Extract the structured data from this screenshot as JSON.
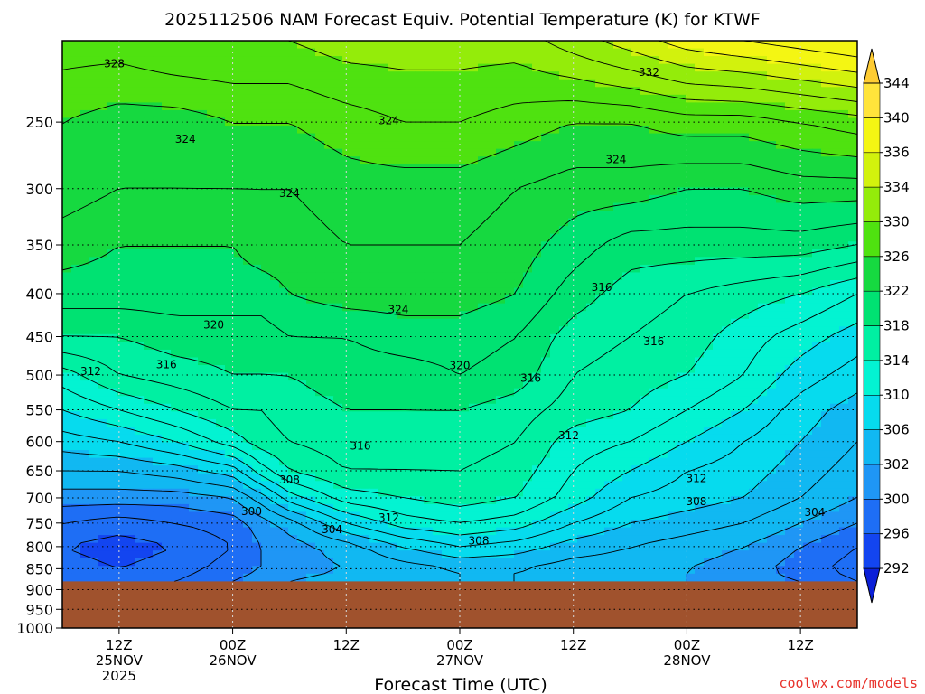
{
  "chart_data": {
    "type": "heatmap",
    "title": "2025112506 NAM Forecast Equiv. Potential Temperature (K) for KTWF",
    "xlabel": "Forecast Time (UTC)",
    "ylabel": "",
    "y_axis": {
      "log_scale": true,
      "reversed": true,
      "range": [
        200,
        1000
      ],
      "ticks": [
        250,
        300,
        350,
        400,
        450,
        500,
        550,
        600,
        650,
        700,
        750,
        800,
        850,
        900,
        950,
        1000
      ]
    },
    "x_axis": {
      "range_hours": [
        0,
        84
      ],
      "ticks": [
        {
          "hour": 6,
          "label": "12Z",
          "date": "25NOV",
          "year": "2025"
        },
        {
          "hour": 18,
          "label": "00Z",
          "date": "26NOV",
          "year": ""
        },
        {
          "hour": 30,
          "label": "12Z",
          "date": "",
          "year": ""
        },
        {
          "hour": 42,
          "label": "00Z",
          "date": "27NOV",
          "year": ""
        },
        {
          "hour": 54,
          "label": "12Z",
          "date": "",
          "year": ""
        },
        {
          "hour": 66,
          "label": "00Z",
          "date": "28NOV",
          "year": ""
        },
        {
          "hour": 78,
          "label": "12Z",
          "date": "",
          "year": ""
        }
      ]
    },
    "grid": true,
    "surface_pressure_hpa": 880,
    "surface_color": "#a0522d",
    "colorbar": {
      "levels": [
        292,
        296,
        300,
        302,
        306,
        310,
        314,
        318,
        322,
        326,
        330,
        334,
        336,
        340,
        344
      ],
      "colors": [
        "#0b1fd8",
        "#1345f0",
        "#1e6ef5",
        "#1f96f5",
        "#11b8f2",
        "#06dbee",
        "#03f3d2",
        "#00f0a2",
        "#00e272",
        "#16d940",
        "#4fe210",
        "#94ec0a",
        "#d2f20d",
        "#f4f613",
        "#ffe43b",
        "#ffcc33"
      ]
    },
    "time_hours": [
      0,
      6,
      12,
      18,
      21,
      24,
      30,
      36,
      42,
      48,
      54,
      60,
      66,
      72,
      78,
      84
    ],
    "field": [
      {
        "p": 200,
        "theta": [
          329,
          329,
          330,
          330,
          330,
          330,
          331,
          331,
          331,
          331,
          333,
          335,
          337,
          338,
          339,
          340
        ]
      },
      {
        "p": 250,
        "theta": [
          326,
          325,
          325,
          326,
          326,
          326,
          327,
          328,
          328,
          327,
          326,
          326,
          327,
          327,
          328,
          329
        ]
      },
      {
        "p": 300,
        "theta": [
          325,
          324,
          324,
          324,
          324,
          324,
          325,
          325,
          325,
          324,
          323,
          323,
          322,
          322,
          323,
          323
        ]
      },
      {
        "p": 350,
        "theta": [
          323,
          322,
          322,
          322,
          323,
          323,
          324,
          324,
          324,
          323,
          321,
          319,
          319,
          319,
          319,
          318
        ]
      },
      {
        "p": 400,
        "theta": [
          321,
          321,
          321,
          321,
          321,
          322,
          323,
          323,
          323,
          322,
          319,
          317,
          316,
          315,
          314,
          312
        ]
      },
      {
        "p": 450,
        "theta": [
          318,
          318,
          319,
          319,
          319,
          320,
          320,
          321,
          321,
          320,
          317,
          316,
          315,
          313,
          311,
          309
        ]
      },
      {
        "p": 500,
        "theta": [
          313,
          316,
          317,
          318,
          318,
          318,
          319,
          319,
          320,
          319,
          316,
          315,
          314,
          312,
          309,
          307
        ]
      },
      {
        "p": 550,
        "theta": [
          310,
          312,
          314,
          316,
          316,
          317,
          318,
          318,
          318,
          317,
          315,
          314,
          312,
          310,
          307,
          305
        ]
      },
      {
        "p": 600,
        "theta": [
          307,
          308,
          310,
          313,
          315,
          316,
          317,
          317,
          317,
          316,
          313,
          312,
          310,
          308,
          306,
          304
        ]
      },
      {
        "p": 650,
        "theta": [
          304,
          304,
          305,
          307,
          311,
          314,
          316,
          316,
          316,
          315,
          312,
          310,
          308,
          307,
          305,
          303
        ]
      },
      {
        "p": 700,
        "theta": [
          301,
          301,
          301,
          302,
          305,
          309,
          313,
          314,
          315,
          314,
          311,
          308,
          307,
          306,
          304,
          302
        ]
      },
      {
        "p": 750,
        "theta": [
          298,
          297,
          298,
          299,
          301,
          303,
          308,
          311,
          312,
          311,
          308,
          306,
          305,
          304,
          302,
          300
        ]
      },
      {
        "p": 800,
        "theta": [
          296,
          295,
          296,
          298,
          300,
          301,
          303,
          306,
          308,
          307,
          305,
          304,
          303,
          302,
          300,
          298
        ]
      },
      {
        "p": 850,
        "theta": [
          297,
          296,
          297,
          299,
          300,
          301,
          302,
          303,
          304,
          304,
          303,
          303,
          302,
          301,
          299,
          297
        ]
      },
      {
        "p": 880,
        "theta": [
          298,
          297,
          298,
          300,
          301,
          302,
          303,
          303,
          304,
          304,
          303,
          303,
          302,
          301,
          300,
          298
        ]
      }
    ],
    "contour_labels": [
      {
        "text": "328",
        "hour": 5.5,
        "p": 213
      },
      {
        "text": "332",
        "hour": 62.0,
        "p": 218
      },
      {
        "text": "324",
        "hour": 13.0,
        "p": 262
      },
      {
        "text": "324",
        "hour": 34.5,
        "p": 249
      },
      {
        "text": "324",
        "hour": 58.5,
        "p": 277
      },
      {
        "text": "324",
        "hour": 24.0,
        "p": 304
      },
      {
        "text": "324",
        "hour": 35.5,
        "p": 418
      },
      {
        "text": "320",
        "hour": 16.0,
        "p": 436
      },
      {
        "text": "316",
        "hour": 57.0,
        "p": 393
      },
      {
        "text": "316",
        "hour": 62.5,
        "p": 456
      },
      {
        "text": "320",
        "hour": 42.0,
        "p": 487
      },
      {
        "text": "316",
        "hour": 49.5,
        "p": 504
      },
      {
        "text": "312",
        "hour": 3.0,
        "p": 495
      },
      {
        "text": "316",
        "hour": 11.0,
        "p": 486
      },
      {
        "text": "316",
        "hour": 31.5,
        "p": 607
      },
      {
        "text": "312",
        "hour": 53.5,
        "p": 590
      },
      {
        "text": "312",
        "hour": 67.0,
        "p": 664
      },
      {
        "text": "308",
        "hour": 24.0,
        "p": 666
      },
      {
        "text": "308",
        "hour": 67.0,
        "p": 707
      },
      {
        "text": "300",
        "hour": 20.0,
        "p": 727
      },
      {
        "text": "312",
        "hour": 34.5,
        "p": 739
      },
      {
        "text": "304",
        "hour": 28.5,
        "p": 763
      },
      {
        "text": "308",
        "hour": 44.0,
        "p": 787
      },
      {
        "text": "304",
        "hour": 79.5,
        "p": 728
      }
    ]
  },
  "watermark": "coolwx.com/models"
}
